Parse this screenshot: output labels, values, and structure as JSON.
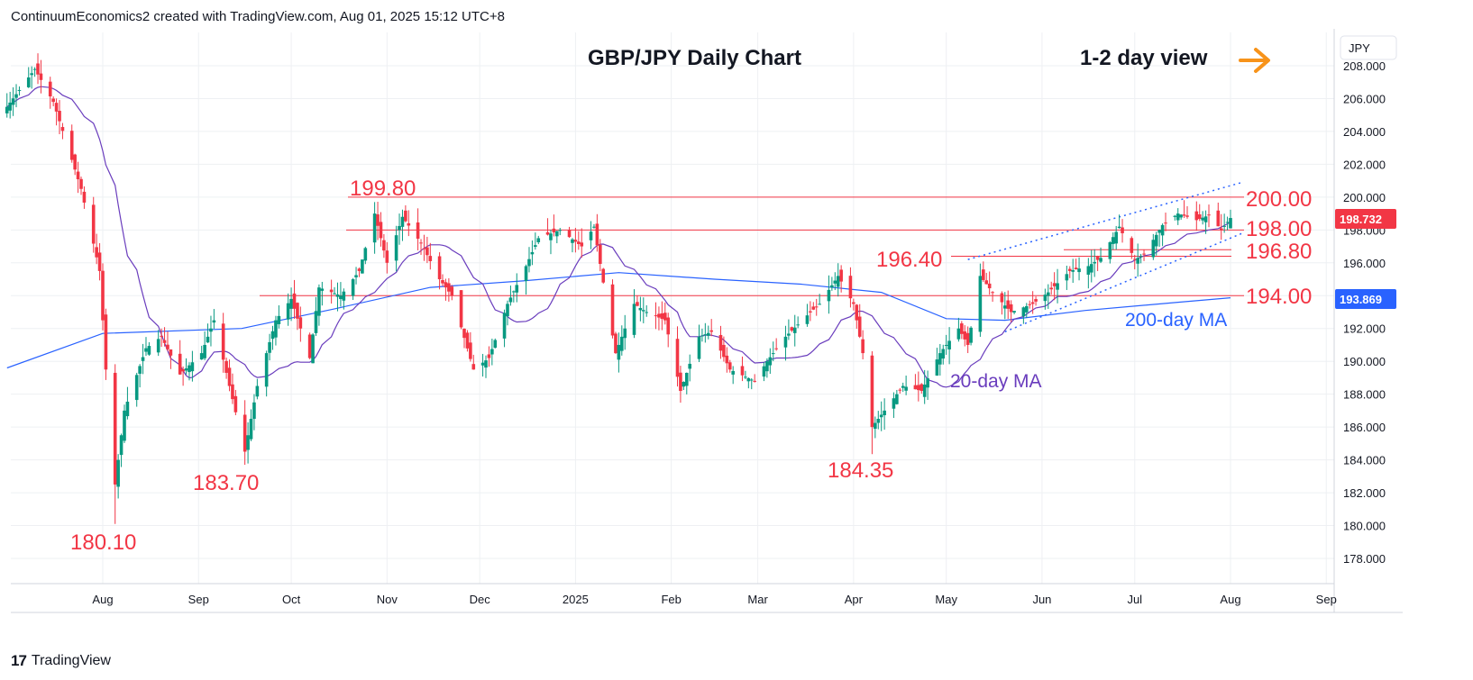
{
  "header": {
    "text": "ContinuumEconomics2 created with TradingView.com, Aug 01, 2025 15:12 UTC+8"
  },
  "footer": {
    "logo_glyph": "17",
    "brand": "TradingView"
  },
  "currency_box": "JPY",
  "colors": {
    "up": "#089981",
    "down": "#f23645",
    "ma20": "#6a3dbd",
    "ma200": "#2962ff",
    "level": "#f23645",
    "price_tag": "#f23645",
    "ma_tag": "#2962ff",
    "arrow": "#f7931a",
    "grid": "#eef0f3"
  },
  "chart_data": {
    "type": "candlestick",
    "title": "GBP/JPY Daily Chart",
    "subtitle": "1-2 day view",
    "arrow_icon": "right-arrow-icon",
    "y_ticks": [
      "208.000",
      "206.000",
      "204.000",
      "202.000",
      "200.000",
      "198.000",
      "196.000",
      "194.000",
      "192.000",
      "190.000",
      "188.000",
      "186.000",
      "184.000",
      "182.000",
      "180.000",
      "178.000"
    ],
    "x_ticks": [
      "Aug",
      "Sep",
      "Oct",
      "Nov",
      "Dec",
      "2025",
      "Feb",
      "Mar",
      "Apr",
      "May",
      "Jun",
      "Jul",
      "Aug",
      "Sep"
    ],
    "ylim": [
      176.5,
      210.5
    ],
    "current_price": "198.732",
    "ma200_value": "193.869",
    "levels": [
      {
        "value": 200.0,
        "label": "200.00"
      },
      {
        "value": 198.0,
        "label": "198.00"
      },
      {
        "value": 196.8,
        "label": "196.80"
      },
      {
        "value": 194.0,
        "label": "194.00"
      },
      {
        "value": 196.4,
        "label": "196.40"
      }
    ],
    "annotations": [
      "199.80",
      "180.10",
      "183.70",
      "184.35"
    ],
    "ma_labels": {
      "ma200": "200-day MA",
      "ma20": "20-day MA"
    },
    "key_points": [
      {
        "date": "2024-07-10",
        "close": 207.5
      },
      {
        "date": "2024-08-05",
        "close": 180.1
      },
      {
        "date": "2024-09-16",
        "close": 183.7
      },
      {
        "date": "2024-10-28",
        "close": 199.8
      },
      {
        "date": "2025-01-07",
        "close": 198.5
      },
      {
        "date": "2025-04-07",
        "close": 184.35
      },
      {
        "date": "2025-05-13",
        "close": 196.4
      },
      {
        "date": "2025-07-28",
        "close": 199.8
      },
      {
        "date": "2025-08-01",
        "close": 198.732
      }
    ]
  }
}
